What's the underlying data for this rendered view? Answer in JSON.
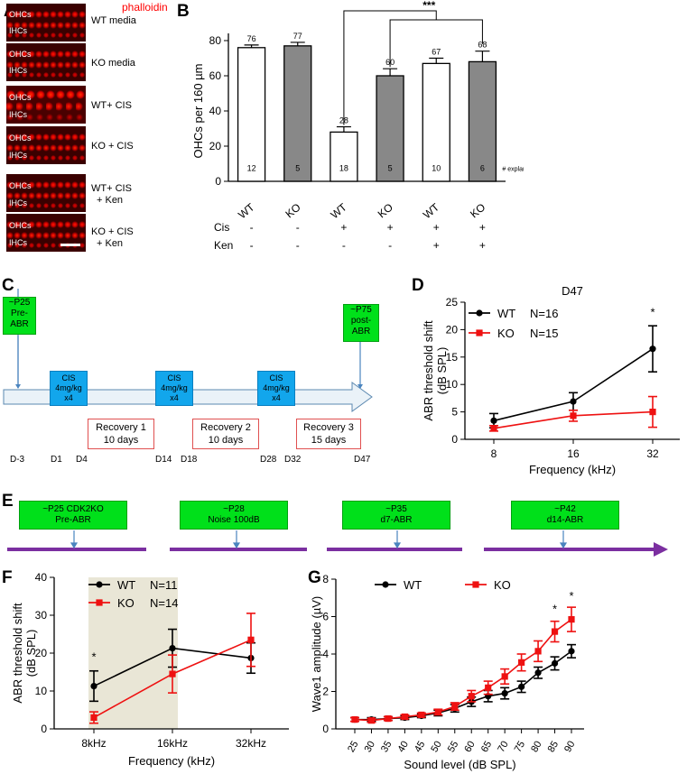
{
  "panels": {
    "A": "A",
    "B": "B",
    "C": "C",
    "D": "D",
    "E": "E",
    "F": "F",
    "G": "G"
  },
  "panel_a": {
    "stain_label": "phalloidin",
    "ohc_label": "OHCs",
    "ihc_label": "IHCs",
    "conditions": [
      {
        "line1": "WT media",
        "line2": ""
      },
      {
        "line1": "KO media",
        "line2": ""
      },
      {
        "line1": "WT+ CIS",
        "line2": ""
      },
      {
        "line1": "KO + CIS",
        "line2": ""
      },
      {
        "line1": "WT+ CIS",
        "line2": "+ Ken"
      },
      {
        "line1": "KO + CIS",
        "line2": "+ Ken"
      }
    ],
    "colors": {
      "stain": "#ff0000"
    }
  },
  "panel_c": {
    "timepoints": [
      {
        "line1": "~P25",
        "line2": "Pre-",
        "line3": "ABR"
      },
      {
        "line1": "~P75",
        "line2": "post-",
        "line3": "ABR"
      }
    ],
    "cis_box": {
      "line1": "CIS",
      "line2": "4mg/kg",
      "line3": "x4"
    },
    "recovery": [
      {
        "line1": "Recovery 1",
        "line2": "10 days"
      },
      {
        "line1": "Recovery 2",
        "line2": "10 days"
      },
      {
        "line1": "Recovery 3",
        "line2": "15 days"
      }
    ],
    "days": [
      "D-3",
      "D1",
      "D4",
      "D14",
      "D18",
      "D28",
      "D32",
      "D47"
    ]
  },
  "panel_e": {
    "boxes": [
      {
        "line1": "~P25 CDK2KO",
        "line2": "Pre-ABR"
      },
      {
        "line1": "~P28",
        "line2": "Noise 100dB"
      },
      {
        "line1": "~P35",
        "line2": "d7-ABR"
      },
      {
        "line1": "~P42",
        "line2": "d14-ABR"
      }
    ],
    "colors": {
      "line": "#7b2fa0",
      "box": "#00e01a"
    }
  },
  "chart_data": [
    {
      "id": "B",
      "type": "bar",
      "ylabel": "OHCs per 160 µm",
      "ylim": [
        0,
        80
      ],
      "yticks": [
        "0",
        "20",
        "40",
        "60",
        "80"
      ],
      "categories": [
        "WT",
        "KO",
        "WT",
        "KO",
        "WT",
        "KO"
      ],
      "bar_fill": [
        "white",
        "gray",
        "white",
        "gray",
        "white",
        "gray"
      ],
      "values": [
        76,
        77,
        28,
        60,
        67,
        68
      ],
      "value_labels": [
        "76",
        "77",
        "28",
        "60",
        "67",
        "68"
      ],
      "errors": [
        1.5,
        2,
        3,
        4,
        3,
        6
      ],
      "n_labels": [
        "12",
        "5",
        "18",
        "5",
        "10",
        "6"
      ],
      "n_caption": "# explants",
      "row_labels": [
        "Cis",
        "Ken"
      ],
      "cis_row": [
        "-",
        "-",
        "+",
        "+",
        "+",
        "+"
      ],
      "ken_row": [
        "-",
        "-",
        "-",
        "-",
        "+",
        "+"
      ],
      "significance": "***",
      "colors": {
        "gray": "#888888",
        "white": "#ffffff"
      }
    },
    {
      "id": "D",
      "type": "line",
      "title": "D47",
      "xlabel": "Frequency (kHz)",
      "ylabel": "ABR threshold shift",
      "ylabel2": "(dB SPL)",
      "categories": [
        "8",
        "16",
        "32"
      ],
      "ylim": [
        0,
        25
      ],
      "yticks": [
        "0",
        "5",
        "10",
        "15",
        "20",
        "25"
      ],
      "series": [
        {
          "name": "WT",
          "n": "N=16",
          "color": "#000000",
          "values": [
            3.4,
            6.9,
            16.5
          ],
          "errors": [
            1.3,
            1.6,
            4.2
          ]
        },
        {
          "name": "KO",
          "n": "N=15",
          "color": "#ee1111",
          "values": [
            2.0,
            4.3,
            5.0
          ],
          "errors": [
            0.5,
            1.0,
            2.8
          ]
        }
      ],
      "annotations": [
        "*"
      ]
    },
    {
      "id": "F",
      "type": "line",
      "xlabel": "Frequency (kHz)",
      "ylabel": "ABR threshold shift",
      "ylabel2": "(dB SPL)",
      "categories": [
        "8kHz",
        "16kHz",
        "32kHz"
      ],
      "ylim": [
        0,
        40
      ],
      "yticks": [
        "0",
        "10",
        "20",
        "30",
        "40"
      ],
      "series": [
        {
          "name": "WT",
          "n": "N=11",
          "color": "#000000",
          "values": [
            11.3,
            21.3,
            18.7
          ],
          "errors": [
            4,
            5,
            4
          ]
        },
        {
          "name": "KO",
          "n": "N=14",
          "color": "#ee1111",
          "values": [
            3,
            14.5,
            23.5
          ],
          "errors": [
            1.5,
            5,
            7
          ]
        }
      ],
      "shaded_region": [
        "8kHz",
        "16kHz"
      ],
      "annotations": [
        "*"
      ],
      "colors": {
        "shade": "#e9e6d6"
      }
    },
    {
      "id": "G",
      "type": "line",
      "xlabel": "Sound level (dB SPL)",
      "ylabel": "Wave1  amplitude  (µV)",
      "categories": [
        "25",
        "30",
        "35",
        "40",
        "45",
        "50",
        "55",
        "60",
        "65",
        "70",
        "75",
        "80",
        "85",
        "90"
      ],
      "ylim": [
        0,
        8
      ],
      "yticks": [
        "0",
        "2",
        "4",
        "6",
        "8"
      ],
      "series": [
        {
          "name": "WT",
          "color": "#000000",
          "values": [
            0.5,
            0.5,
            0.55,
            0.6,
            0.7,
            0.85,
            1.1,
            1.45,
            1.75,
            1.9,
            2.25,
            3.0,
            3.5,
            4.15
          ],
          "errors": [
            0.1,
            0.1,
            0.1,
            0.1,
            0.1,
            0.15,
            0.2,
            0.25,
            0.3,
            0.3,
            0.3,
            0.3,
            0.35,
            0.35
          ]
        },
        {
          "name": "KO",
          "color": "#ee1111",
          "values": [
            0.5,
            0.45,
            0.55,
            0.65,
            0.75,
            0.9,
            1.2,
            1.75,
            2.2,
            2.8,
            3.55,
            4.15,
            5.2,
            5.85
          ],
          "errors": [
            0.1,
            0.1,
            0.1,
            0.1,
            0.1,
            0.15,
            0.2,
            0.3,
            0.35,
            0.4,
            0.45,
            0.55,
            0.55,
            0.65
          ]
        }
      ],
      "annotations": [
        "*",
        "*"
      ]
    }
  ]
}
